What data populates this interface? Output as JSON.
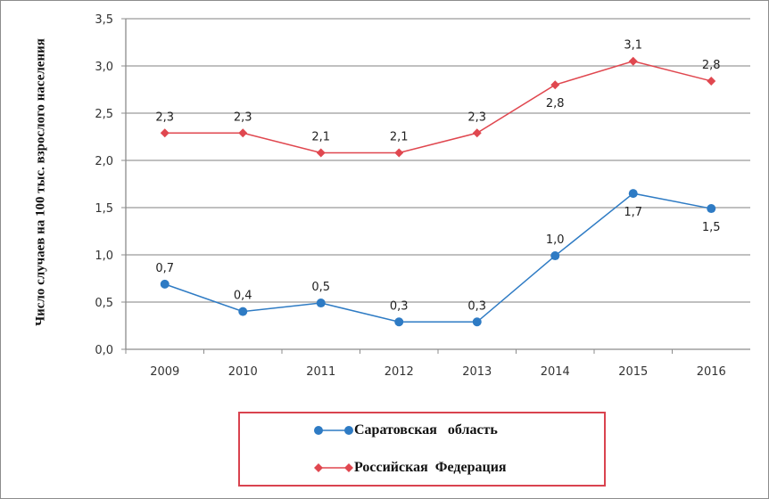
{
  "chart_data": {
    "type": "line",
    "title": "",
    "xlabel": "",
    "ylabel": "Число случаев на 100 тыс. взрослого населения",
    "categories": [
      "2009",
      "2010",
      "2011",
      "2012",
      "2013",
      "2014",
      "2015",
      "2016"
    ],
    "ylim": [
      0,
      3.5
    ],
    "yticks": [
      "0,0",
      "0,5",
      "1,0",
      "1,5",
      "2,0",
      "2,5",
      "3,0",
      "3,5"
    ],
    "ytick_values": [
      0,
      0.5,
      1,
      1.5,
      2,
      2.5,
      3,
      3.5
    ],
    "grid": true,
    "legend_position": "bottom",
    "series": [
      {
        "name": "Саратовская   область",
        "color": "#2e7bc4",
        "marker": "circle",
        "values": [
          0.69,
          0.4,
          0.49,
          0.29,
          0.29,
          0.99,
          1.65,
          1.49
        ],
        "labels": [
          "0,7",
          "0,4",
          "0,5",
          "0,3",
          "0,3",
          "1,0",
          "1,7",
          "1,5"
        ],
        "label_pos": [
          "above",
          "above",
          "above",
          "above",
          "above",
          "above",
          "below",
          "below"
        ]
      },
      {
        "name": "Российская  Федерация",
        "color": "#e0474f",
        "marker": "diamond",
        "values": [
          2.29,
          2.29,
          2.08,
          2.08,
          2.29,
          2.8,
          3.05,
          2.84
        ],
        "labels": [
          "2,3",
          "2,3",
          "2,1",
          "2,1",
          "2,3",
          "2,8",
          "3,1",
          "2,8"
        ],
        "label_pos": [
          "above",
          "above",
          "above",
          "above",
          "above",
          "below",
          "above",
          "above"
        ]
      }
    ]
  }
}
